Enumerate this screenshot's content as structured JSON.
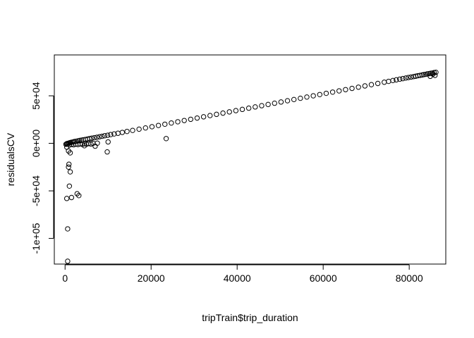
{
  "chart_data": {
    "type": "scatter",
    "title": "",
    "xlabel": "tripTrain$trip_duration",
    "ylabel": "residualsCV",
    "xlim": [
      -2500,
      88500
    ],
    "ylim": [
      -127000,
      93000
    ],
    "x_ticks": [
      {
        "value": 0,
        "label": "0"
      },
      {
        "value": 20000,
        "label": "20000"
      },
      {
        "value": 40000,
        "label": "40000"
      },
      {
        "value": 60000,
        "label": "60000"
      },
      {
        "value": 80000,
        "label": "80000"
      }
    ],
    "y_ticks": [
      {
        "value": -100000,
        "label": "-1e+05"
      },
      {
        "value": -50000,
        "label": "-5e+04"
      },
      {
        "value": 0,
        "label": "0e+00"
      },
      {
        "value": 50000,
        "label": "5e+04"
      }
    ],
    "grid": false,
    "legend": "none",
    "marker": "open-circle",
    "color": "#000000",
    "series": [
      {
        "x": [
          200,
          350,
          500,
          700,
          900,
          1100,
          1300,
          1600,
          1900,
          2200,
          2600,
          3000,
          3400,
          3800,
          4200,
          4700,
          5200,
          5700,
          6200,
          6800,
          7400,
          8000,
          8600,
          9200,
          9900,
          10600,
          11400,
          12300,
          13300,
          14400,
          15700,
          17200,
          18700,
          20200,
          21700,
          23200,
          24700,
          26200,
          27700,
          29200,
          30700,
          32200,
          33700,
          35200,
          36700,
          38200,
          39700,
          41200,
          42700,
          44200,
          45700,
          47200,
          48700,
          50200,
          51700,
          53200,
          54700,
          56200,
          57700,
          59200,
          60700,
          62200,
          63700,
          65200,
          66700,
          68200,
          69700,
          71200,
          72700,
          74200,
          75200,
          76200,
          77000,
          77800,
          78500,
          79200,
          79800,
          80400,
          81000,
          81500,
          82000,
          82500,
          83000,
          83400,
          83800,
          84200,
          84600,
          85000,
          85400,
          85800,
          86200,
          1500,
          2500,
          3500,
          4500,
          5500,
          6500,
          7500,
          1000,
          2000,
          3000,
          4000,
          5000,
          6000,
          400,
          800,
          1200,
          800,
          400,
          1000,
          1200,
          600,
          3200,
          2800,
          1500,
          600,
          900,
          9800,
          23500,
          10000,
          4500,
          7000,
          86000,
          85500,
          84900
        ],
        "y": [
          -1000,
          -500,
          -200,
          0,
          300,
          600,
          900,
          1200,
          1500,
          1900,
          2200,
          2600,
          3000,
          3300,
          3700,
          4100,
          4500,
          5000,
          5400,
          5900,
          6400,
          6900,
          7400,
          8000,
          8500,
          9200,
          9900,
          10600,
          11500,
          12500,
          13600,
          14900,
          16200,
          17500,
          18800,
          20100,
          21400,
          22700,
          24000,
          25300,
          26600,
          27900,
          29200,
          30500,
          31800,
          33100,
          34400,
          35700,
          37000,
          38300,
          39600,
          40900,
          42200,
          43500,
          44800,
          46100,
          47400,
          48700,
          50000,
          51300,
          52600,
          53900,
          55200,
          56500,
          57800,
          59100,
          60400,
          61700,
          63000,
          64300,
          65200,
          66100,
          66800,
          67500,
          68100,
          68700,
          69200,
          69700,
          70200,
          70600,
          71100,
          71500,
          71900,
          72300,
          72600,
          73000,
          73300,
          73700,
          74000,
          74400,
          74700,
          -1200,
          -800,
          -600,
          -400,
          -200,
          0,
          200,
          -1800,
          -1500,
          -1300,
          -1100,
          -900,
          -700,
          -4000,
          -8000,
          -10000,
          -25000,
          -58000,
          -45000,
          -30000,
          -90000,
          -55000,
          -53000,
          -57000,
          -124000,
          -22000,
          -9000,
          5000,
          1500,
          -2500,
          -3000,
          71500,
          72800,
          70500
        ]
      }
    ]
  }
}
